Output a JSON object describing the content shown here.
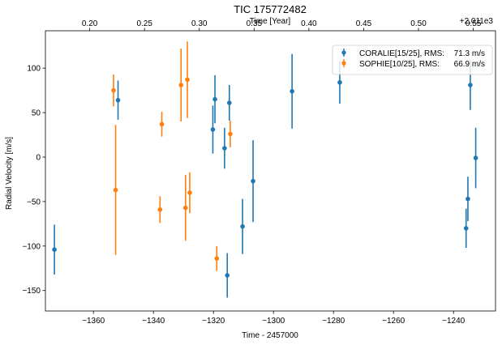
{
  "chart_data": {
    "type": "scatter",
    "title": "TIC 175772482",
    "xlabel": "Time - 2457000",
    "ylabel": "Radial Velocity [m/s]",
    "x2label": "Time [Year]",
    "x2_offset_label": "+2.011e3",
    "xlim": [
      -1376,
      -1226
    ],
    "ylim": [
      -173,
      142
    ],
    "x_ticks": [
      -1360,
      -1340,
      -1320,
      -1300,
      -1280,
      -1260,
      -1240
    ],
    "x_tick_labels": [
      "−1360",
      "−1340",
      "−1320",
      "−1300",
      "−1280",
      "−1260",
      "−1240"
    ],
    "y_ticks": [
      -150,
      -100,
      -50,
      0,
      50,
      100
    ],
    "y_tick_labels": [
      "−150",
      "−100",
      "−50",
      "0",
      "50",
      "100"
    ],
    "x2_ticks": [
      0.2,
      0.25,
      0.3,
      0.35,
      0.4,
      0.45,
      0.5,
      0.55
    ],
    "x2_tick_labels": [
      "0.20",
      "0.25",
      "0.30",
      "0.35",
      "0.40",
      "0.45",
      "0.50",
      "0.55"
    ],
    "x2_mapping_note": "top axis years since 2011 = 0.2034 + (x + 1360)/365.25",
    "legend_position": "top-right",
    "grid": false,
    "series": [
      {
        "name": "CORALIE[15/25], RMS:",
        "rms_label": "71.3 m/s",
        "color": "#1f77b4",
        "points": [
          {
            "x": -1373.0,
            "y": -104,
            "err": 28
          },
          {
            "x": -1351.8,
            "y": 64,
            "err": 22
          },
          {
            "x": -1320.2,
            "y": 31,
            "err": 27
          },
          {
            "x": -1319.5,
            "y": 65,
            "err": 27
          },
          {
            "x": -1316.3,
            "y": 10,
            "err": 23
          },
          {
            "x": -1315.4,
            "y": -133,
            "err": 25
          },
          {
            "x": -1314.7,
            "y": 61,
            "err": 20
          },
          {
            "x": -1310.3,
            "y": -78,
            "err": 31
          },
          {
            "x": -1306.8,
            "y": -27,
            "err": 46
          },
          {
            "x": -1293.8,
            "y": 74,
            "err": 42
          },
          {
            "x": -1277.9,
            "y": 84,
            "err": 24
          },
          {
            "x": -1235.8,
            "y": -80,
            "err": 22
          },
          {
            "x": -1235.2,
            "y": -47,
            "err": 25
          },
          {
            "x": -1234.4,
            "y": 81,
            "err": 28
          },
          {
            "x": -1232.6,
            "y": -1,
            "err": 34
          }
        ]
      },
      {
        "name": "SOPHIE[10/25], RMS:",
        "rms_label": "66.9 m/s",
        "color": "#ff7f0e",
        "points": [
          {
            "x": -1353.3,
            "y": 75,
            "err": 18
          },
          {
            "x": -1352.6,
            "y": -37,
            "err": 73
          },
          {
            "x": -1337.8,
            "y": -59,
            "err": 15
          },
          {
            "x": -1337.2,
            "y": 37,
            "err": 14
          },
          {
            "x": -1330.8,
            "y": 81,
            "err": 41
          },
          {
            "x": -1329.3,
            "y": -57,
            "err": 37
          },
          {
            "x": -1328.7,
            "y": 87,
            "err": 43
          },
          {
            "x": -1327.9,
            "y": -40,
            "err": 23
          },
          {
            "x": -1318.9,
            "y": -114,
            "err": 14
          },
          {
            "x": -1314.4,
            "y": 26,
            "err": 15
          }
        ]
      }
    ]
  }
}
